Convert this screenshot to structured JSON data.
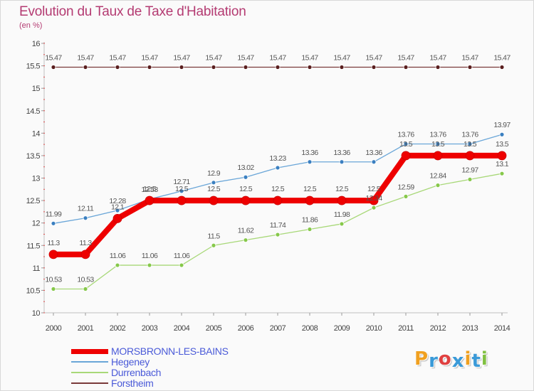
{
  "title": "Evolution du Taux de Taxe d'Habitation",
  "subtitle": "(en %)",
  "logo_text": "Proxiti",
  "chart_data": {
    "type": "line",
    "x": [
      2000,
      2001,
      2002,
      2003,
      2004,
      2005,
      2006,
      2007,
      2008,
      2009,
      2010,
      2011,
      2012,
      2013,
      2014
    ],
    "ylim": [
      10,
      16
    ],
    "yticks": [
      10,
      10.5,
      11,
      11.5,
      12,
      12.5,
      13,
      13.5,
      14,
      14.5,
      15,
      15.5,
      16
    ],
    "series": [
      {
        "name": "Forstheim",
        "color": "#6b2a2a",
        "values": [
          15.47,
          15.47,
          15.47,
          15.47,
          15.47,
          15.47,
          15.47,
          15.47,
          15.47,
          15.47,
          15.47,
          15.47,
          15.47,
          15.47,
          15.47
        ]
      },
      {
        "name": "Hegeney",
        "color": "#5a9ad0",
        "values": [
          11.99,
          12.11,
          12.28,
          12.53,
          12.71,
          12.9,
          13.02,
          13.23,
          13.36,
          13.36,
          13.36,
          13.76,
          13.76,
          13.76,
          13.97
        ]
      },
      {
        "name": "Durrenbach",
        "color": "#96d25a",
        "values": [
          10.53,
          10.53,
          11.06,
          11.06,
          11.06,
          11.5,
          11.62,
          11.74,
          11.86,
          11.98,
          12.34,
          12.59,
          12.84,
          12.97,
          13.1
        ]
      },
      {
        "name": "MORSBRONN-LES-BAINS",
        "color": "#ee0000",
        "values": [
          11.3,
          11.3,
          12.1,
          12.5,
          12.5,
          12.5,
          12.5,
          12.5,
          12.5,
          12.5,
          12.5,
          13.5,
          13.5,
          13.5,
          13.5
        ]
      }
    ],
    "point_labels": {
      "Forstheim": [
        "15.47",
        "15.47",
        "15.47",
        "15.47",
        "15.47",
        "15.47",
        "15.47",
        "15.47",
        "15.47",
        "15.47",
        "15.47",
        "15.47",
        "15.47",
        "15.47",
        "15.47"
      ],
      "Hegeney": [
        "11.99",
        "12.11",
        "12.28",
        "12.53",
        "12.71",
        "12.9",
        "13.02",
        "13.23",
        "13.36",
        "13.36",
        "13.36",
        "13.76",
        "13.76",
        "13.76",
        "13.97"
      ],
      "Durrenbach": [
        "10.53",
        "10.53",
        "11.06",
        "11.06",
        "11.06",
        "11.5",
        "11.62",
        "11.74",
        "11.86",
        "11.98",
        "12.34",
        "12.59",
        "12.84",
        "12.97",
        "13.1"
      ],
      "MORSBRONN-LES-BAINS": [
        "11.3",
        "11.3",
        "12.1",
        "12.5",
        "12.5",
        "12.5",
        "12.5",
        "12.5",
        "12.5",
        "12.5",
        "12.5",
        "13.5",
        "13.5",
        "13.5",
        "13.5"
      ]
    },
    "legend": [
      "MORSBRONN-LES-BAINS",
      "Hegeney",
      "Durrenbach",
      "Forstheim"
    ],
    "grid": false,
    "legend_position": "bottom-left"
  }
}
